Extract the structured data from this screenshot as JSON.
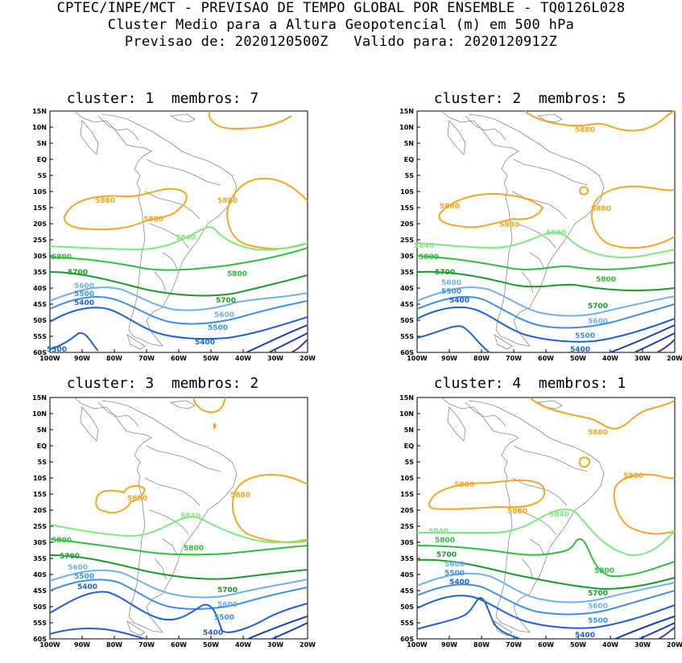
{
  "header": {
    "line1": "CPTEC/INPE/MCT - PREVISAO DE TEMPO GLOBAL POR ENSEMBLE - TQ0126L028",
    "line2": "Cluster Medio para a Altura Geopotencial (m) em 500 hPa",
    "line3": "Previsao de: 2020120500Z   Valido para: 2020120912Z"
  },
  "axes": {
    "lat_ticks": [
      "15N",
      "10N",
      "5N",
      "EQ",
      "5S",
      "10S",
      "15S",
      "20S",
      "25S",
      "30S",
      "35S",
      "40S",
      "45S",
      "50S",
      "55S",
      "60S"
    ],
    "lon_ticks": [
      "100W",
      "90W",
      "80W",
      "70W",
      "60W",
      "50W",
      "40W",
      "30W",
      "20W"
    ]
  },
  "colors": {
    "c5880": "#f5a623",
    "c5840": "#7fe87f",
    "c5800": "#2fbf3f",
    "c5700": "#1a9a2a",
    "c5600": "#6fb0f0",
    "c5500": "#3f8ee8",
    "c5400": "#2060d8",
    "c5300": "#1a3fb0",
    "c5200": "#5030a0",
    "coast": "#888888"
  },
  "panels": [
    {
      "title": "cluster: 1  membros: 7",
      "labels": {
        "l5880a": "5880",
        "l5880b": "5880",
        "l5880c": "5880",
        "l5840": "5840",
        "l5800a": "5800",
        "l5800b": "5800",
        "l5700a": "5700",
        "l5700b": "5700",
        "l5600a": "5600",
        "l5600b": "5600",
        "l5500a": "5500",
        "l5500b": "5500",
        "l5400a": "5400",
        "l5400b": "5400",
        "l5300": "5300"
      }
    },
    {
      "title": "cluster: 2  membros: 5",
      "labels": {
        "l5880a": "5880",
        "l5880b": "5880",
        "l5880c": "5880",
        "l5880d": "5880",
        "l5840a": "5840",
        "l5840b": "5840",
        "l5800a": "5800",
        "l5800b": "5800",
        "l5700a": "5700",
        "l5700b": "5700",
        "l5600a": "5600",
        "l5600b": "5600",
        "l5500a": "5500",
        "l5500b": "5500",
        "l5400a": "5400",
        "l5400b": "5400"
      }
    },
    {
      "title": "cluster: 3  membros: 2",
      "labels": {
        "l5880a": "5880",
        "l5880b": "5880",
        "l5840": "5840",
        "l5800a": "5800",
        "l5800b": "5800",
        "l5700a": "5700",
        "l5700b": "5700",
        "l5600a": "5600",
        "l5600b": "5600",
        "l5500a": "5500",
        "l5500b": "5500",
        "l5400a": "5400",
        "l5400b": "5400"
      }
    },
    {
      "title": "cluster: 4  membros: 1",
      "labels": {
        "l5880a": "5880",
        "l5880b": "5880",
        "l5880c": "5880",
        "l5880d": "5880",
        "l5840a": "5840",
        "l5840b": "5840",
        "l5800a": "5800",
        "l5800b": "5800",
        "l5700a": "5700",
        "l5700b": "5700",
        "l5600a": "5600",
        "l5600b": "5600",
        "l5500a": "5500",
        "l5500b": "5500",
        "l5400a": "5400",
        "l5400b": "5400"
      }
    }
  ]
}
